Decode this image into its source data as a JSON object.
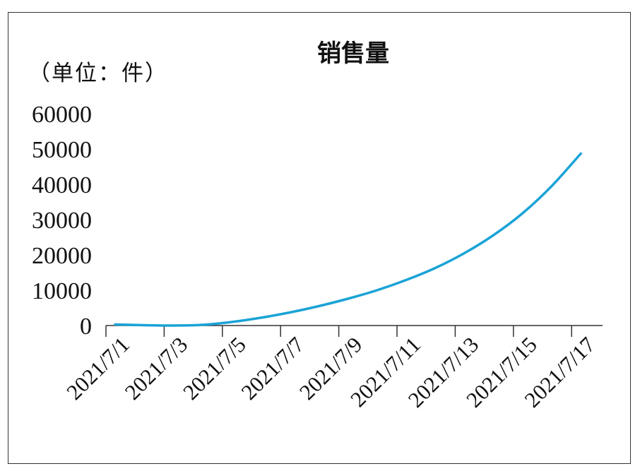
{
  "chart_data": {
    "type": "line",
    "title": "销售量",
    "ylabel": "（单位：件）",
    "xlabel": "",
    "ylim": [
      0,
      60000
    ],
    "yticks": [
      0,
      10000,
      20000,
      30000,
      40000,
      50000,
      60000
    ],
    "ytick_labels": [
      "0",
      "10000",
      "20000",
      "30000",
      "40000",
      "50000",
      "60000"
    ],
    "x": [
      "2021/7/1",
      "2021/7/2",
      "2021/7/3",
      "2021/7/4",
      "2021/7/5",
      "2021/7/6",
      "2021/7/7",
      "2021/7/8",
      "2021/7/9",
      "2021/7/10",
      "2021/7/11",
      "2021/7/12",
      "2021/7/13",
      "2021/7/14",
      "2021/7/15",
      "2021/7/16",
      "2021/7/17"
    ],
    "xtick_labels": [
      "2021/7/1",
      "2021/7/3",
      "2021/7/5",
      "2021/7/7",
      "2021/7/9",
      "2021/7/11",
      "2021/7/13",
      "2021/7/15",
      "2021/7/17"
    ],
    "series": [
      {
        "values": [
          300,
          100,
          0,
          200,
          1000,
          2200,
          3700,
          5500,
          7600,
          10000,
          12900,
          16300,
          20500,
          25600,
          31800,
          39500,
          48700
        ],
        "color": "#1aa3d6"
      }
    ],
    "grid": false,
    "legend": "none",
    "colors": {
      "line": "#1aa3d6",
      "axis": "#333333",
      "text": "#111111"
    }
  }
}
